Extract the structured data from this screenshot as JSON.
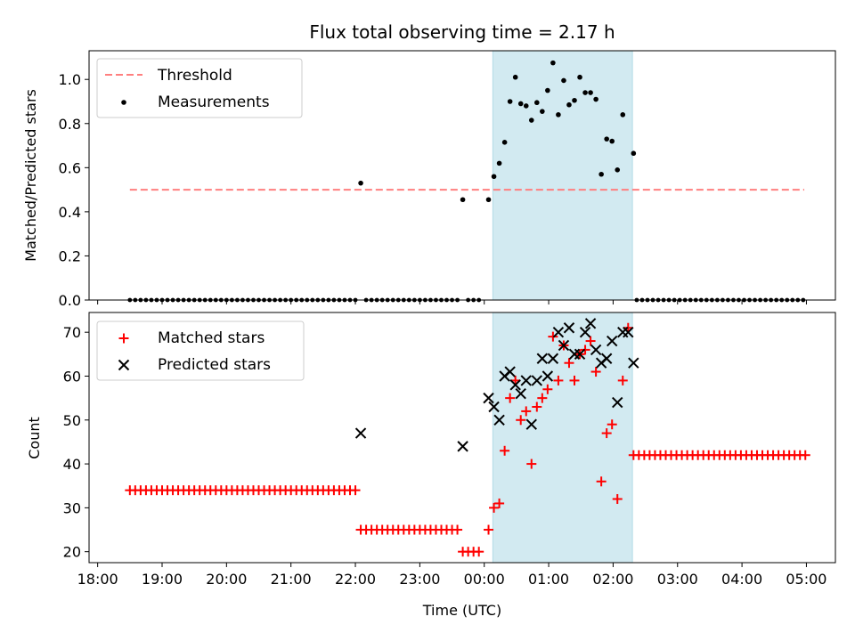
{
  "title": "Flux total observing time = 2.17 h",
  "top": {
    "ylabel": "Matched/Predicted stars",
    "ylim": [
      0,
      1.13
    ],
    "yticks": [
      0.0,
      0.2,
      0.4,
      0.6,
      0.8,
      1.0
    ],
    "ytick_labels": [
      "0.0",
      "0.2",
      "0.4",
      "0.6",
      "0.8",
      "1.0"
    ],
    "legend": {
      "threshold_label": "Threshold",
      "measurements_label": "Measurements"
    }
  },
  "bottom": {
    "ylabel": "Count",
    "ylim": [
      17.5,
      74.5
    ],
    "yticks": [
      20,
      30,
      40,
      50,
      60,
      70
    ],
    "ytick_labels": [
      "20",
      "30",
      "40",
      "50",
      "60",
      "70"
    ],
    "legend": {
      "matched_label": "Matched stars",
      "predicted_label": "Predicted stars"
    }
  },
  "xaxis": {
    "xlabel": "Time (UTC)",
    "xlim": [
      "2024-01-01T17:52",
      "2024-01-02T05:27"
    ],
    "ticks": [
      "2024-01-01T18:00",
      "2024-01-01T19:00",
      "2024-01-01T20:00",
      "2024-01-01T21:00",
      "2024-01-01T22:00",
      "2024-01-01T23:00",
      "2024-01-02T00:00",
      "2024-01-02T01:00",
      "2024-01-02T02:00",
      "2024-01-02T03:00",
      "2024-01-02T04:00",
      "2024-01-02T05:00"
    ],
    "tick_labels": [
      "18:00",
      "19:00",
      "20:00",
      "21:00",
      "22:00",
      "23:00",
      "00:00",
      "01:00",
      "02:00",
      "03:00",
      "04:00",
      "05:00"
    ]
  },
  "colors": {
    "threshold": "#ff7f7f",
    "measurements": "#000000",
    "matched": "#ff0000",
    "predicted": "#000000",
    "span": "#add8e6"
  },
  "chart_data": [
    {
      "type": "scatter",
      "title": "Flux total observing time = 2.17 h",
      "ylabel": "Matched/Predicted stars",
      "ylim": [
        0,
        1.13
      ],
      "highlight_span": [
        "2024-01-02T00:08",
        "2024-01-02T02:18"
      ],
      "threshold": {
        "name": "Threshold",
        "value": 0.5,
        "x": [
          "2024-01-01T18:30",
          "2024-01-02T04:58"
        ]
      },
      "series": [
        {
          "name": "Measurements",
          "points": [
            [
              "2024-01-01T22:05",
              0.53
            ],
            [
              "2024-01-01T23:40",
              0.455
            ],
            [
              "2024-01-02T00:04",
              0.455
            ],
            [
              "2024-01-02T00:09",
              0.56
            ],
            [
              "2024-01-02T00:14",
              0.62
            ],
            [
              "2024-01-02T00:19",
              0.715
            ],
            [
              "2024-01-02T00:24",
              0.9
            ],
            [
              "2024-01-02T00:29",
              1.01
            ],
            [
              "2024-01-02T00:34",
              0.89
            ],
            [
              "2024-01-02T00:39",
              0.88
            ],
            [
              "2024-01-02T00:44",
              0.815
            ],
            [
              "2024-01-02T00:49",
              0.895
            ],
            [
              "2024-01-02T00:54",
              0.855
            ],
            [
              "2024-01-02T00:59",
              0.95
            ],
            [
              "2024-01-02T01:04",
              1.075
            ],
            [
              "2024-01-02T01:09",
              0.84
            ],
            [
              "2024-01-02T01:14",
              0.995
            ],
            [
              "2024-01-02T01:19",
              0.885
            ],
            [
              "2024-01-02T01:24",
              0.905
            ],
            [
              "2024-01-02T01:29",
              1.01
            ],
            [
              "2024-01-02T01:34",
              0.94
            ],
            [
              "2024-01-02T01:39",
              0.94
            ],
            [
              "2024-01-02T01:44",
              0.91
            ],
            [
              "2024-01-02T01:49",
              0.57
            ],
            [
              "2024-01-02T01:54",
              0.73
            ],
            [
              "2024-01-02T01:59",
              0.72
            ],
            [
              "2024-01-02T02:04",
              0.59
            ],
            [
              "2024-01-02T02:09",
              0.84
            ],
            [
              "2024-01-02T02:19",
              0.665
            ]
          ],
          "zero_runs": [
            {
              "start": "2024-01-01T18:30",
              "end": "2024-01-01T22:00",
              "step_min": 5
            },
            {
              "start": "2024-01-01T22:10",
              "end": "2024-01-01T23:35",
              "step_min": 5
            },
            {
              "start": "2024-01-01T23:45",
              "end": "2024-01-01T23:59",
              "step_min": 5
            },
            {
              "start": "2024-01-02T02:22",
              "end": "2024-01-02T04:58",
              "step_min": 5
            }
          ]
        }
      ]
    },
    {
      "type": "scatter",
      "xlabel": "Time (UTC)",
      "ylabel": "Count",
      "ylim": [
        17.5,
        74.5
      ],
      "highlight_span": [
        "2024-01-02T00:08",
        "2024-01-02T02:18"
      ],
      "series": [
        {
          "name": "Matched stars",
          "points": [
            [
              "2024-01-01T23:40",
              20
            ],
            [
              "2024-01-01T23:45",
              20
            ],
            [
              "2024-01-01T23:50",
              20
            ],
            [
              "2024-01-01T23:55",
              20
            ],
            [
              "2024-01-02T00:04",
              25
            ],
            [
              "2024-01-02T00:09",
              30
            ],
            [
              "2024-01-02T00:14",
              31
            ],
            [
              "2024-01-02T00:19",
              43
            ],
            [
              "2024-01-02T00:24",
              55
            ],
            [
              "2024-01-02T00:29",
              59
            ],
            [
              "2024-01-02T00:34",
              50
            ],
            [
              "2024-01-02T00:39",
              52
            ],
            [
              "2024-01-02T00:44",
              40
            ],
            [
              "2024-01-02T00:49",
              53
            ],
            [
              "2024-01-02T00:54",
              55
            ],
            [
              "2024-01-02T00:59",
              57
            ],
            [
              "2024-01-02T01:04",
              69
            ],
            [
              "2024-01-02T01:09",
              59
            ],
            [
              "2024-01-02T01:14",
              67
            ],
            [
              "2024-01-02T01:19",
              63
            ],
            [
              "2024-01-02T01:24",
              59
            ],
            [
              "2024-01-02T01:29",
              65
            ],
            [
              "2024-01-02T01:34",
              66
            ],
            [
              "2024-01-02T01:39",
              68
            ],
            [
              "2024-01-02T01:44",
              61
            ],
            [
              "2024-01-02T01:49",
              36
            ],
            [
              "2024-01-02T01:54",
              47
            ],
            [
              "2024-01-02T01:59",
              49
            ],
            [
              "2024-01-02T02:04",
              32
            ],
            [
              "2024-01-02T02:09",
              59
            ],
            [
              "2024-01-02T02:14",
              71
            ]
          ],
          "constant_runs": [
            {
              "start": "2024-01-01T18:30",
              "end": "2024-01-01T22:00",
              "step_min": 5,
              "value": 34
            },
            {
              "start": "2024-01-01T22:05",
              "end": "2024-01-01T23:35",
              "step_min": 5,
              "value": 25
            },
            {
              "start": "2024-01-02T02:19",
              "end": "2024-01-02T05:00",
              "step_min": 5,
              "value": 42
            }
          ]
        },
        {
          "name": "Predicted stars",
          "points": [
            [
              "2024-01-01T22:05",
              47
            ],
            [
              "2024-01-01T23:40",
              44
            ],
            [
              "2024-01-02T00:04",
              55
            ],
            [
              "2024-01-02T00:09",
              53
            ],
            [
              "2024-01-02T00:14",
              50
            ],
            [
              "2024-01-02T00:19",
              60
            ],
            [
              "2024-01-02T00:24",
              61
            ],
            [
              "2024-01-02T00:29",
              58
            ],
            [
              "2024-01-02T00:34",
              56
            ],
            [
              "2024-01-02T00:39",
              59
            ],
            [
              "2024-01-02T00:44",
              49
            ],
            [
              "2024-01-02T00:49",
              59
            ],
            [
              "2024-01-02T00:54",
              64
            ],
            [
              "2024-01-02T00:59",
              60
            ],
            [
              "2024-01-02T01:04",
              64
            ],
            [
              "2024-01-02T01:09",
              70
            ],
            [
              "2024-01-02T01:14",
              67
            ],
            [
              "2024-01-02T01:19",
              71
            ],
            [
              "2024-01-02T01:24",
              65
            ],
            [
              "2024-01-02T01:29",
              65
            ],
            [
              "2024-01-02T01:34",
              70
            ],
            [
              "2024-01-02T01:39",
              72
            ],
            [
              "2024-01-02T01:44",
              66
            ],
            [
              "2024-01-02T01:49",
              63
            ],
            [
              "2024-01-02T01:54",
              64
            ],
            [
              "2024-01-02T01:59",
              68
            ],
            [
              "2024-01-02T02:04",
              54
            ],
            [
              "2024-01-02T02:09",
              70
            ],
            [
              "2024-01-02T02:14",
              70
            ],
            [
              "2024-01-02T02:19",
              63
            ]
          ]
        }
      ]
    }
  ]
}
